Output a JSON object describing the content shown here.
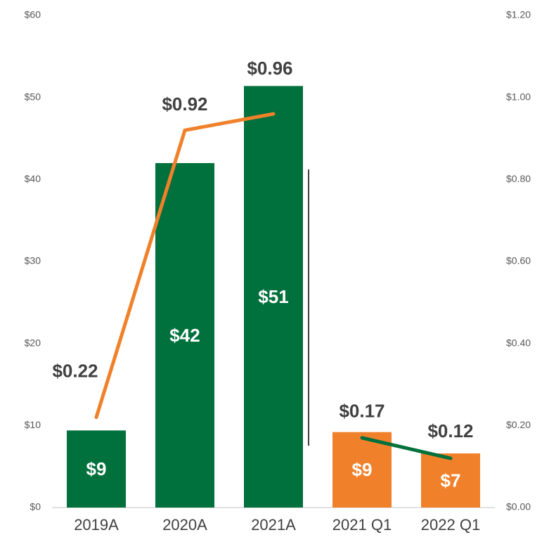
{
  "chart_data": {
    "type": "bar",
    "categories": [
      "2019A",
      "2020A",
      "2021A",
      "2021 Q1",
      "2022 Q1"
    ],
    "values": [
      9.4,
      42,
      51.4,
      9.2,
      6.6
    ],
    "value_labels": [
      "$9",
      "$42",
      "$51",
      "$9",
      "$7"
    ],
    "colors": [
      "#00703c",
      "#00703c",
      "#00703c",
      "#f0812a",
      "#f0812a"
    ],
    "ylim": [
      0,
      60
    ],
    "yticks": [
      {
        "value": 0,
        "label": "$0"
      },
      {
        "value": 10,
        "label": "$10"
      },
      {
        "value": 20,
        "label": "$20"
      },
      {
        "value": 30,
        "label": "$30"
      },
      {
        "value": 40,
        "label": "$40"
      },
      {
        "value": 50,
        "label": "$50"
      },
      {
        "value": 60,
        "label": "$60"
      }
    ],
    "y2lim": [
      0,
      1.2
    ],
    "y2ticks": [
      {
        "value": 0,
        "label": "$0.00"
      },
      {
        "value": 0.2,
        "label": "$0.20"
      },
      {
        "value": 0.4,
        "label": "$0.40"
      },
      {
        "value": 0.6,
        "label": "$0.60"
      },
      {
        "value": 0.8,
        "label": "$0.80"
      },
      {
        "value": 1.0,
        "label": "$1.00"
      },
      {
        "value": 1.2,
        "label": "$1.20"
      }
    ],
    "lines": [
      {
        "axis": "y2",
        "color": "#f0812a",
        "values": [
          0.22,
          0.92,
          0.96,
          null,
          null
        ],
        "value_labels": [
          "$0.22",
          "$0.92",
          "$0.96",
          null,
          null
        ]
      },
      {
        "axis": "y2",
        "color": "#00703c",
        "values": [
          null,
          null,
          null,
          0.17,
          0.12
        ],
        "value_labels": [
          null,
          null,
          null,
          "$0.17",
          "$0.12"
        ]
      }
    ]
  }
}
